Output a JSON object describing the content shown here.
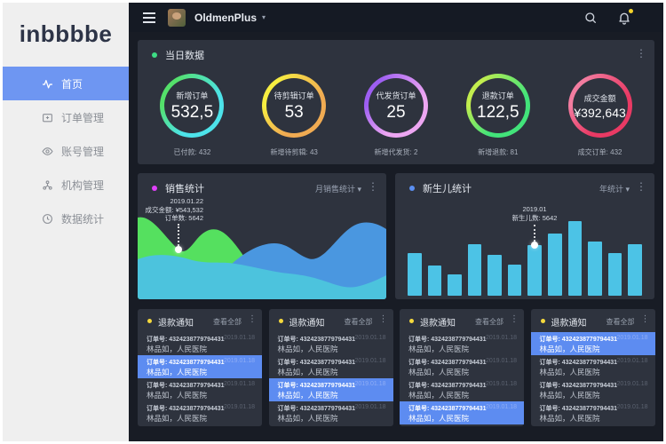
{
  "icons": {
    "ellipsis": "⋮",
    "caret": "▾"
  },
  "colors": {
    "page_bg": "#181c25",
    "card_bg": "#2e333e",
    "topbar_bg": "#151a24",
    "sidebar_bg": "#efefef",
    "active_menu": "#6e96f2",
    "highlight_row": "#5d8cf1",
    "bell_badge": "#f5d32a"
  },
  "sidebar": {
    "logo": "inbbbbe",
    "items": [
      {
        "name": "home",
        "icon": "pulse-icon",
        "label": "首页",
        "active": true
      },
      {
        "name": "orders",
        "icon": "order-folder-icon",
        "label": "订单管理",
        "active": false
      },
      {
        "name": "accounts",
        "icon": "eye-icon",
        "label": "账号管理",
        "active": false
      },
      {
        "name": "organizations",
        "icon": "org-chart-icon",
        "label": "机构管理",
        "active": false
      },
      {
        "name": "statistics",
        "icon": "clock-icon",
        "label": "数据统计",
        "active": false
      }
    ]
  },
  "topbar": {
    "username": "OldmenPlus"
  },
  "daily": {
    "title": "当日数据",
    "dot_color": "#3ddc84",
    "stats": [
      {
        "label": "新增订单",
        "value": "532,5",
        "footer": "已付款: 432",
        "ring_main": "#4de3ea",
        "ring_accent": "#54e06a"
      },
      {
        "label": "待剪辑订单",
        "value": "53",
        "footer": "新增待剪辑: 43",
        "ring_main": "#f0ab52",
        "ring_accent": "#f7ee41"
      },
      {
        "label": "代发货订单",
        "value": "25",
        "footer": "新增代发货: 2",
        "ring_main": "#eda6f2",
        "ring_accent": "#9d5ef2"
      },
      {
        "label": "退款订单",
        "value": "122,5",
        "footer": "新增退款: 81",
        "ring_main": "#42e37a",
        "ring_accent": "#c2ed4e"
      },
      {
        "label": "成交金额",
        "value": "¥392,643",
        "footer": "成交订单: 432",
        "ring_main": "#e93a64",
        "ring_accent": "#f27da0"
      }
    ]
  },
  "sales": {
    "title": "销售统计",
    "dot_color": "#e040fb",
    "dropdown": "月销售统计",
    "tooltip": {
      "date": "2019.01.22",
      "amount": "成交金额: ¥543,532",
      "orders": "订单数: 5642"
    },
    "colors": {
      "green": "#55e05f",
      "blue": "#4a97e0",
      "cyan": "#4cc3dd"
    }
  },
  "newborn": {
    "title": "新生儿统计",
    "dot_color": "#5b8ff2",
    "dropdown": "年统计",
    "bar_color": "#4cc3e6",
    "tooltip": {
      "date": "2019.01",
      "count": "新生儿数: 5642",
      "bar_index": 6
    },
    "values": [
      48,
      34,
      24,
      58,
      46,
      35,
      57,
      70,
      84,
      61,
      48,
      58
    ]
  },
  "notices": {
    "title": "退款通知",
    "dot_color": "#f5d93d",
    "view_all": "查看全部",
    "row": {
      "order": "订单号: 4324238779794431",
      "name": "林品如，人民医院",
      "date": "2019.01.18"
    },
    "cards": [
      {
        "highlight_row": 1
      },
      {
        "highlight_row": 2
      },
      {
        "highlight_row": 3
      },
      {
        "highlight_row": 0
      }
    ]
  },
  "chart_data": [
    {
      "type": "area",
      "title": "销售统计",
      "series": [
        {
          "name": "green-wave"
        },
        {
          "name": "blue-wave"
        },
        {
          "name": "cyan-wave"
        }
      ],
      "annotation": {
        "x": "2019.01.22",
        "lines": [
          "成交金额: ¥543,532",
          "订单数: 5642"
        ]
      },
      "axes": "none (decorative smoothed stacked waves)"
    },
    {
      "type": "bar",
      "title": "新生儿统计",
      "values": [
        48,
        34,
        24,
        58,
        46,
        35,
        57,
        70,
        84,
        61,
        48,
        58
      ],
      "annotation": {
        "x": "2019.01",
        "label": "新生儿数: 5642",
        "bar_index": 6
      },
      "axes": "none (12 unlabeled bars)"
    }
  ]
}
